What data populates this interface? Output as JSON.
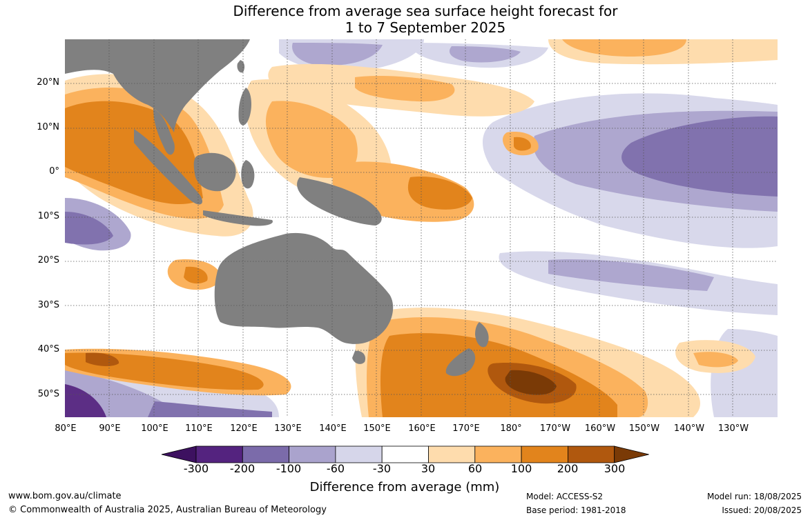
{
  "title": "Difference from average sea surface height forecast for",
  "title_line2": "1 to 7 September 2025",
  "lat_labels": [
    "20°N",
    "10°N",
    "0°",
    "10°S",
    "20°S",
    "30°S",
    "40°S",
    "50°S"
  ],
  "lon_labels": [
    "80°E",
    "90°E",
    "100°E",
    "110°E",
    "120°E",
    "130°E",
    "140°E",
    "150°E",
    "160°E",
    "170°E",
    "180°",
    "170°W",
    "160°W",
    "150°W",
    "140°W",
    "130°W"
  ],
  "colorbar": {
    "ticks": [
      "-300",
      "-200",
      "-100",
      "-60",
      "-30",
      "30",
      "60",
      "100",
      "200",
      "300"
    ],
    "colors": [
      "#3d1160",
      "#54237f",
      "#7b6baa",
      "#aaa3cd",
      "#d6d6ea",
      "#ffffff",
      "#fedcad",
      "#fbb25d",
      "#e2841c",
      "#b0580e",
      "#7a3a06"
    ],
    "label": "Difference from average (mm)"
  },
  "colors": {
    "land": "#808080",
    "grid": "#555555"
  },
  "footer": {
    "website": "www.bom.gov.au/climate",
    "copyright": "© Commonwealth of Australia 2025, Australian Bureau of Meteorology",
    "model": "Model: ACCESS-S2",
    "base_period": "Base period: 1981-2018",
    "model_run": "Model run: 18/08/2025",
    "issued": "Issued: 20/08/2025"
  }
}
